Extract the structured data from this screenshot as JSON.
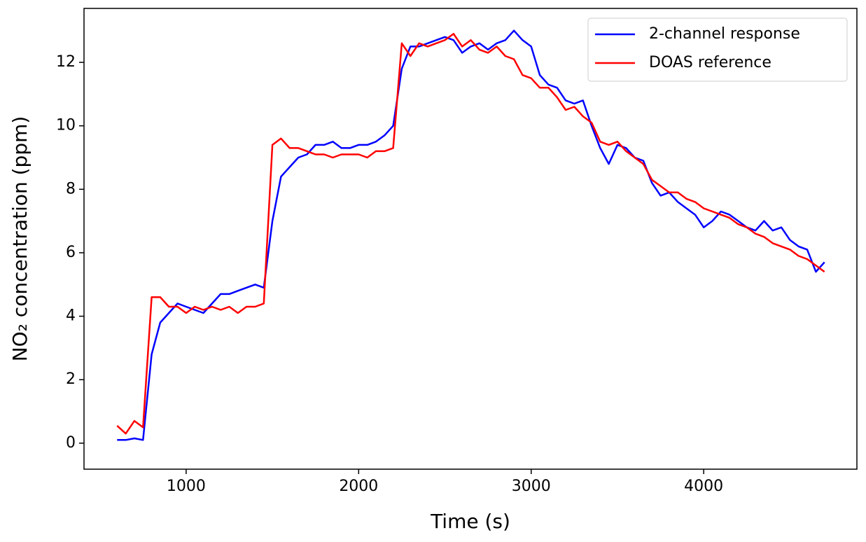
{
  "chart_data": {
    "type": "line",
    "x_label": "Time   (s)",
    "y_label": "NO₂ concentration   (ppm)",
    "x": [
      600,
      650,
      700,
      750,
      800,
      850,
      900,
      950,
      1000,
      1050,
      1100,
      1150,
      1200,
      1250,
      1300,
      1350,
      1400,
      1450,
      1500,
      1550,
      1600,
      1650,
      1700,
      1750,
      1800,
      1850,
      1900,
      1950,
      2000,
      2050,
      2100,
      2150,
      2200,
      2250,
      2300,
      2350,
      2400,
      2450,
      2500,
      2550,
      2600,
      2650,
      2700,
      2750,
      2800,
      2850,
      2900,
      2950,
      3000,
      3050,
      3100,
      3150,
      3200,
      3250,
      3300,
      3350,
      3400,
      3450,
      3500,
      3550,
      3600,
      3650,
      3700,
      3750,
      3800,
      3850,
      3900,
      3950,
      4000,
      4050,
      4100,
      4150,
      4200,
      4250,
      4300,
      4350,
      4400,
      4450,
      4500,
      4550,
      4600,
      4650,
      4700
    ],
    "series": [
      {
        "name": "2-channel response",
        "color": "#0000ff",
        "values": [
          0.1,
          0.1,
          0.15,
          0.1,
          2.8,
          3.8,
          4.1,
          4.4,
          4.3,
          4.2,
          4.1,
          4.4,
          4.7,
          4.7,
          4.8,
          4.9,
          5.0,
          4.9,
          7.0,
          8.4,
          8.7,
          9.0,
          9.1,
          9.4,
          9.4,
          9.5,
          9.3,
          9.3,
          9.4,
          9.4,
          9.5,
          9.7,
          10.0,
          11.8,
          12.5,
          12.5,
          12.6,
          12.7,
          12.8,
          12.7,
          12.3,
          12.5,
          12.6,
          12.4,
          12.6,
          12.7,
          13.0,
          12.7,
          12.5,
          11.6,
          11.3,
          11.2,
          10.8,
          10.7,
          10.8,
          10.0,
          9.3,
          8.8,
          9.4,
          9.3,
          9.0,
          8.9,
          8.2,
          7.8,
          7.9,
          7.6,
          7.4,
          7.2,
          6.8,
          7.0,
          7.3,
          7.2,
          7.0,
          6.8,
          6.7,
          7.0,
          6.7,
          6.8,
          6.4,
          6.2,
          6.1,
          5.4,
          5.7
        ]
      },
      {
        "name": "DOAS reference",
        "color": "#ff0000",
        "values": [
          0.55,
          0.3,
          0.7,
          0.5,
          4.6,
          4.6,
          4.3,
          4.3,
          4.1,
          4.3,
          4.2,
          4.3,
          4.2,
          4.3,
          4.1,
          4.3,
          4.3,
          4.4,
          9.4,
          9.6,
          9.3,
          9.3,
          9.2,
          9.1,
          9.1,
          9.0,
          9.1,
          9.1,
          9.1,
          9.0,
          9.2,
          9.2,
          9.3,
          12.6,
          12.2,
          12.6,
          12.5,
          12.6,
          12.7,
          12.9,
          12.5,
          12.7,
          12.4,
          12.3,
          12.5,
          12.2,
          12.1,
          11.6,
          11.5,
          11.2,
          11.2,
          10.9,
          10.5,
          10.6,
          10.3,
          10.1,
          9.5,
          9.4,
          9.5,
          9.2,
          9.0,
          8.8,
          8.3,
          8.1,
          7.9,
          7.9,
          7.7,
          7.6,
          7.4,
          7.3,
          7.2,
          7.1,
          6.9,
          6.8,
          6.6,
          6.5,
          6.3,
          6.2,
          6.1,
          5.9,
          5.8,
          5.6,
          5.4
        ]
      }
    ],
    "xlim": [
      408,
      4888
    ],
    "xticks": [
      1000,
      2000,
      3000,
      4000
    ],
    "ylim": [
      -0.82,
      13.7
    ],
    "yticks": [
      0,
      2,
      4,
      6,
      8,
      10,
      12
    ],
    "legend": "upper right"
  }
}
